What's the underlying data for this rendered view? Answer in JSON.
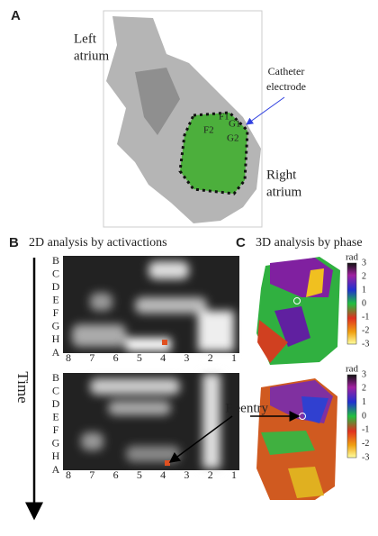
{
  "panel_a": {
    "label": "A",
    "left_atrium": [
      "Left",
      "atrium"
    ],
    "catheter": [
      "Catheter",
      "electrode"
    ],
    "electrodes": [
      "F1",
      "F2",
      "G1",
      "G2"
    ],
    "right_atrium": [
      "Right",
      "atrium"
    ]
  },
  "panel_b": {
    "label": "B",
    "title": "2D analysis by activactions",
    "rows": [
      "B",
      "C",
      "D",
      "E",
      "F",
      "G",
      "H",
      "A"
    ],
    "columns": [
      "8",
      "7",
      "6",
      "5",
      "4",
      "3",
      "2",
      "1"
    ],
    "time": "Time"
  },
  "panel_c": {
    "label": "C",
    "title": "3D analysis by phase",
    "unit": "rad",
    "colorbar_ticks": [
      3,
      2,
      1,
      0,
      -1,
      -2,
      -3
    ],
    "reentry": "Reentry"
  }
}
